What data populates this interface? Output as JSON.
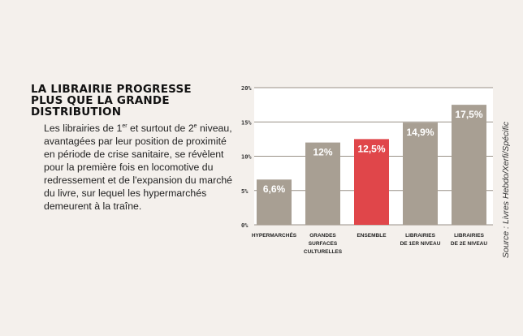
{
  "title": "LA LIBRAIRIE PROGRESSE PLUS QUE LA GRANDE DISTRIBUTION",
  "body": {
    "p1": "Les librairies de 1",
    "sup1": "er",
    "p2": " et surtout de 2",
    "sup2": "e",
    "p3": " niveau, avantagées par leur position de proximité en période de crise sanitaire, se révèlent pour la première fois en locomotive du redressement et de l'expansion du marché du livre, sur lequel les hypermarchés demeurent à la traîne."
  },
  "source": "Source : Livres Hebdo/Xerfi/Spécific",
  "colors": {
    "bar": "#a89f93",
    "highlight": "#e0464a",
    "background": "#f4f0ec"
  },
  "chart_data": {
    "type": "bar",
    "categories": [
      [
        "HYPERMARCHÉS"
      ],
      [
        "GRANDES",
        "SURFACES",
        "CULTURELLES"
      ],
      [
        "ENSEMBLE"
      ],
      [
        "LIBRAIRIES",
        "DE 1ER NIVEAU"
      ],
      [
        "LIBRAIRIES",
        "DE 2E NIVEAU"
      ]
    ],
    "values": [
      6.6,
      12,
      12.5,
      14.9,
      17.5
    ],
    "labels": [
      "6,6%",
      "12%",
      "12,5%",
      "14,9%",
      "17,5%"
    ],
    "highlight_index": 2,
    "yticks": [
      0,
      5,
      10,
      15,
      20
    ],
    "ytick_labels": [
      "0%",
      "5%",
      "10%",
      "15%",
      "20%"
    ],
    "ylim": [
      0,
      20
    ],
    "grid": true
  }
}
